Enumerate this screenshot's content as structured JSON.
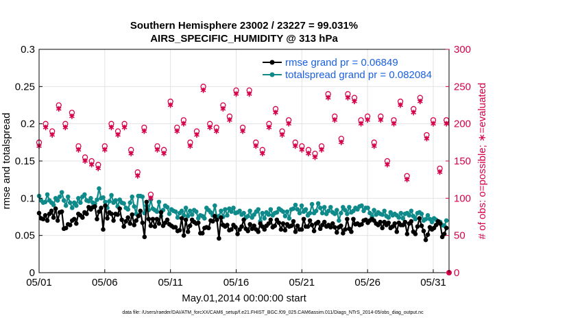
{
  "chart_data": {
    "type": "line",
    "title": "Southern Hemisphere 23002 / 23227 = 99.031%",
    "subtitle": "AIRS_SPECIFIC_HUMIDITY @ 313 hPa",
    "xlabel": "May.01,2014 00:00:00 start",
    "ylabel": "rmse and totalspread",
    "y2label": "# of obs: o=possible; ∗=evaluated",
    "footnote": "data file: /Users/raeder/DAI/ATM_forcXX/CAM6_setup/f.e21.FHIST_BGC.f09_025.CAM6assim.011/Diags_NTrS_2014-05/obs_diag_output.nc",
    "xlim": [
      0,
      31.2
    ],
    "ylim": [
      0,
      0.3
    ],
    "y2lim": [
      0,
      300
    ],
    "x_ticks": [
      0,
      5,
      10,
      15,
      20,
      25,
      30
    ],
    "x_tick_labels": [
      "05/01",
      "05/06",
      "05/11",
      "05/16",
      "05/21",
      "05/26",
      "05/31"
    ],
    "y_tick_labels": [
      "0",
      "0.05",
      "0.1",
      "0.15",
      "0.2",
      "0.25",
      "0.3"
    ],
    "y2_tick_labels": [
      "0",
      "50",
      "100",
      "150",
      "200",
      "250",
      "300"
    ],
    "grid": true,
    "legend_position": "top-right",
    "colors": {
      "rmse": "#000000",
      "spread": "#0f8a8a",
      "obs": "#d6004a",
      "legend_text": "#1a5fe0"
    },
    "series": [
      {
        "name": "rmse grand pr = 0.06849",
        "axis": "left",
        "values": [
          0.08,
          0.073,
          0.072,
          0.077,
          0.07,
          0.079,
          0.083,
          0.074,
          0.086,
          0.07,
          0.081,
          0.082,
          0.059,
          0.06,
          0.065,
          0.064,
          0.07,
          0.072,
          0.066,
          0.079,
          0.077,
          0.074,
          0.081,
          0.079,
          0.088,
          0.085,
          0.088,
          0.089,
          0.072,
          0.082,
          0.087,
          0.058,
          0.09,
          0.073,
          0.081,
          0.079,
          0.07,
          0.079,
          0.078,
          0.086,
          0.071,
          0.062,
          0.069,
          0.074,
          0.066,
          0.078,
          0.064,
          0.07,
          0.076,
          0.083,
          0.067,
          0.048,
          0.095,
          0.072,
          0.063,
          0.072,
          0.062,
          0.072,
          0.066,
          0.081,
          0.063,
          0.067,
          0.071,
          0.065,
          0.063,
          0.061,
          0.061,
          0.056,
          0.057,
          0.073,
          0.05,
          0.071,
          0.055,
          0.063,
          0.071,
          0.068,
          0.066,
          0.067,
          0.053,
          0.053,
          0.06,
          0.061,
          0.06,
          0.07,
          0.069,
          0.076,
          0.071,
          0.046,
          0.074,
          0.064,
          0.062,
          0.064,
          0.057,
          0.058,
          0.064,
          0.061,
          0.052,
          0.058,
          0.062,
          0.071,
          0.059,
          0.056,
          0.065,
          0.059,
          0.063,
          0.058,
          0.055,
          0.066,
          0.062,
          0.058,
          0.063,
          0.066,
          0.071,
          0.061,
          0.063,
          0.071,
          0.067,
          0.058,
          0.066,
          0.057,
          0.065,
          0.062,
          0.063,
          0.069,
          0.055,
          0.063,
          0.058,
          0.058,
          0.072,
          0.062,
          0.062,
          0.07,
          0.064,
          0.056,
          0.066,
          0.068,
          0.059,
          0.064,
          0.068,
          0.062,
          0.064,
          0.061,
          0.066,
          0.061,
          0.054,
          0.061,
          0.063,
          0.053,
          0.058,
          0.072,
          0.059,
          0.055,
          0.072,
          0.065,
          0.066,
          0.064,
          0.065,
          0.07,
          0.071,
          0.067,
          0.07,
          0.072,
          0.07,
          0.066,
          0.064,
          0.068,
          0.06,
          0.068,
          0.064,
          0.067,
          0.06,
          0.062,
          0.066,
          0.055,
          0.067,
          0.064,
          0.064,
          0.068,
          0.052,
          0.066,
          0.069,
          0.055,
          0.052,
          0.062,
          0.073,
          0.063,
          0.056,
          0.044,
          0.051,
          0.061,
          0.058,
          0.06,
          0.064,
          0.069,
          0.066,
          0.048,
          0.052,
          0.06
        ]
      },
      {
        "name": "totalspread grand pr = 0.082084",
        "axis": "left",
        "values": [
          0.103,
          0.097,
          0.094,
          0.095,
          0.105,
          0.097,
          0.094,
          0.091,
          0.1,
          0.097,
          0.102,
          0.108,
          0.097,
          0.09,
          0.102,
          0.094,
          0.087,
          0.094,
          0.09,
          0.1,
          0.094,
          0.102,
          0.105,
          0.097,
          0.096,
          0.1,
          0.094,
          0.093,
          0.098,
          0.113,
          0.1,
          0.101,
          0.095,
          0.087,
          0.096,
          0.104,
          0.094,
          0.097,
          0.089,
          0.098,
          0.094,
          0.093,
          0.087,
          0.085,
          0.094,
          0.102,
          0.089,
          0.079,
          0.103,
          0.103,
          0.102,
          0.08,
          0.09,
          0.084,
          0.098,
          0.086,
          0.084,
          0.082,
          0.095,
          0.076,
          0.084,
          0.09,
          0.088,
          0.079,
          0.085,
          0.083,
          0.082,
          0.074,
          0.08,
          0.083,
          0.077,
          0.087,
          0.076,
          0.083,
          0.078,
          0.084,
          0.082,
          0.073,
          0.077,
          0.076,
          0.073,
          0.087,
          0.084,
          0.081,
          0.077,
          0.09,
          0.074,
          0.076,
          0.083,
          0.075,
          0.085,
          0.077,
          0.086,
          0.082,
          0.087,
          0.08,
          0.081,
          0.083,
          0.078,
          0.08,
          0.074,
          0.076,
          0.083,
          0.074,
          0.078,
          0.082,
          0.085,
          0.069,
          0.08,
          0.073,
          0.081,
          0.078,
          0.085,
          0.077,
          0.08,
          0.081,
          0.086,
          0.084,
          0.082,
          0.076,
          0.082,
          0.073,
          0.085,
          0.086,
          0.091,
          0.085,
          0.08,
          0.09,
          0.082,
          0.085,
          0.077,
          0.08,
          0.092,
          0.08,
          0.083,
          0.093,
          0.087,
          0.08,
          0.088,
          0.079,
          0.083,
          0.088,
          0.081,
          0.079,
          0.084,
          0.07,
          0.08,
          0.088,
          0.084,
          0.079,
          0.088,
          0.081,
          0.083,
          0.087,
          0.085,
          0.089,
          0.09,
          0.083,
          0.087,
          0.087,
          0.08,
          0.075,
          0.084,
          0.078,
          0.081,
          0.079,
          0.078,
          0.083,
          0.076,
          0.074,
          0.081,
          0.077,
          0.079,
          0.077,
          0.074,
          0.08,
          0.073,
          0.079,
          0.08,
          0.077,
          0.083,
          0.076,
          0.072,
          0.08,
          0.081,
          0.079,
          0.07,
          0.072,
          0.077,
          0.072,
          0.068,
          0.073,
          0.071,
          0.067,
          0.068,
          0.064,
          0.063,
          0.07
        ]
      },
      {
        "name": "# of obs possible",
        "axis": "right",
        "marker": "o",
        "x": [
          0,
          0.5,
          1,
          1.5,
          2,
          2.5,
          3,
          3.5,
          4,
          4.5,
          5,
          5.5,
          6,
          6.5,
          7,
          7.5,
          8,
          8.5,
          9,
          9.5,
          10,
          10.5,
          11,
          11.5,
          12,
          12.5,
          13,
          13.5,
          14,
          14.5,
          15,
          15.5,
          16,
          16.5,
          17,
          17.5,
          18,
          18.5,
          19,
          19.5,
          20,
          20.5,
          21,
          21.5,
          22,
          22.5,
          23,
          23.5,
          24,
          24.5,
          25,
          25.5,
          26,
          26.5,
          27,
          27.5,
          28,
          28.5,
          29,
          29.5,
          30,
          30.5,
          31
        ],
        "values": [
          175,
          200,
          190,
          225,
          200,
          215,
          170,
          155,
          150,
          145,
          170,
          200,
          190,
          200,
          165,
          135,
          195,
          105,
          170,
          165,
          230,
          195,
          205,
          175,
          190,
          250,
          200,
          195,
          225,
          210,
          245,
          195,
          245,
          175,
          165,
          200,
          220,
          190,
          205,
          175,
          170,
          165,
          160,
          170,
          240,
          210,
          180,
          240,
          235,
          205,
          210,
          175,
          210,
          150,
          205,
          230,
          130,
          220,
          235,
          185,
          205,
          140,
          205
        ]
      },
      {
        "name": "# of obs evaluated",
        "axis": "right",
        "marker": "*",
        "x": [
          0,
          0.5,
          1,
          1.5,
          2,
          2.5,
          3,
          3.5,
          4,
          4.5,
          5,
          5.5,
          6,
          6.5,
          7,
          7.5,
          8,
          8.5,
          9,
          9.5,
          10,
          10.5,
          11,
          11.5,
          12,
          12.5,
          13,
          13.5,
          14,
          14.5,
          15,
          15.5,
          16,
          16.5,
          17,
          17.5,
          18,
          18.5,
          19,
          19.5,
          20,
          20.5,
          21,
          21.5,
          22,
          22.5,
          23,
          23.5,
          24,
          24.5,
          25,
          25.5,
          26,
          26.5,
          27,
          27.5,
          28,
          28.5,
          29,
          29.5,
          30,
          30.5,
          31
        ],
        "values": [
          170,
          195,
          185,
          220,
          195,
          210,
          165,
          150,
          145,
          140,
          165,
          195,
          185,
          195,
          160,
          130,
          190,
          100,
          165,
          160,
          225,
          190,
          200,
          170,
          185,
          245,
          195,
          190,
          220,
          205,
          240,
          190,
          240,
          170,
          160,
          195,
          215,
          185,
          200,
          170,
          165,
          160,
          155,
          165,
          235,
          205,
          175,
          235,
          230,
          200,
          205,
          170,
          205,
          145,
          200,
          225,
          125,
          215,
          230,
          180,
          200,
          135,
          200
        ]
      }
    ]
  }
}
